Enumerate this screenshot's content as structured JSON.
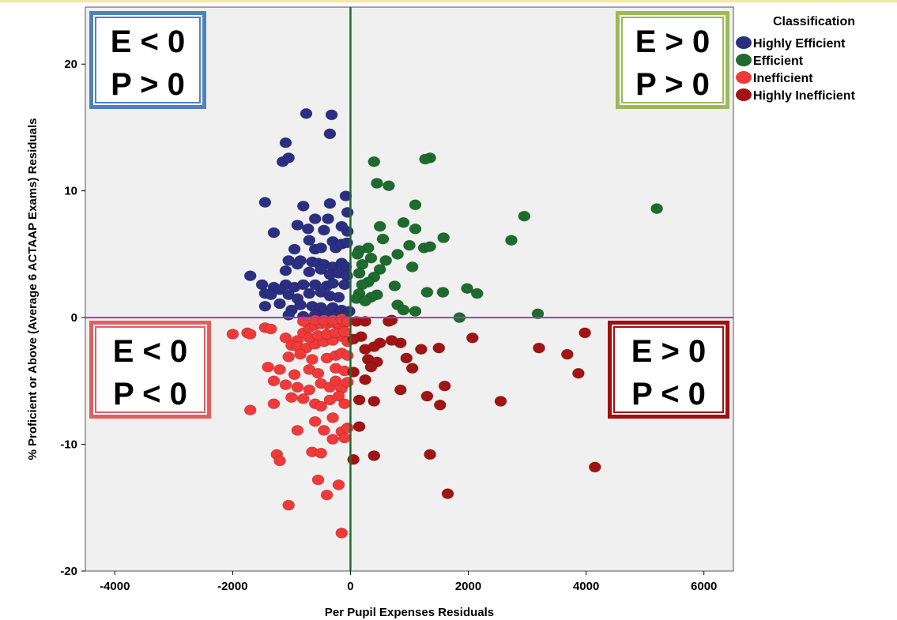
{
  "chart_data": {
    "type": "scatter",
    "title": "",
    "xlabel": "Per Pupil Expenses Residuals",
    "ylabel": "% Proficient or Above (Average 6 ACTAAP Exams) Residuals",
    "xlim": [
      -4500,
      6500
    ],
    "ylim": [
      -20,
      24.5
    ],
    "x_ticks": [
      -4000,
      -2000,
      0,
      2000,
      4000,
      6000
    ],
    "y_ticks": [
      -20,
      -10,
      0,
      10,
      20
    ],
    "grid": false,
    "reference_lines": [
      {
        "axis": "x",
        "value": 0,
        "color": "#1f6b2e"
      },
      {
        "axis": "y",
        "value": 0,
        "color": "#8a4aa8"
      }
    ],
    "quadrant_labels": [
      {
        "position": "top-left",
        "line1": "E < 0",
        "line2": "P > 0",
        "border_color": "#4f81bd"
      },
      {
        "position": "top-right",
        "line1": "E > 0",
        "line2": "P > 0",
        "border_color": "#9bbb59"
      },
      {
        "position": "bottom-left",
        "line1": "E < 0",
        "line2": "P < 0",
        "border_color": "#e06060"
      },
      {
        "position": "bottom-right",
        "line1": "E > 0",
        "line2": "P < 0",
        "border_color": "#a01010"
      }
    ],
    "legend": {
      "title": "Classification",
      "placement": "top-right"
    },
    "series": [
      {
        "name": "Highly Efficient",
        "color": "#2b2f82",
        "points": [
          [
            -750,
            16.1
          ],
          [
            -320,
            16.0
          ],
          [
            -350,
            14.5
          ],
          [
            -1100,
            13.8
          ],
          [
            -1150,
            12.3
          ],
          [
            -1050,
            12.6
          ],
          [
            -80,
            9.6
          ],
          [
            -1450,
            9.1
          ],
          [
            -800,
            8.8
          ],
          [
            -350,
            9.0
          ],
          [
            -50,
            8.3
          ],
          [
            -600,
            7.8
          ],
          [
            -380,
            7.8
          ],
          [
            -1300,
            6.7
          ],
          [
            -900,
            7.3
          ],
          [
            -720,
            7.0
          ],
          [
            -450,
            6.9
          ],
          [
            -150,
            7.2
          ],
          [
            -50,
            6.8
          ],
          [
            -700,
            6.1
          ],
          [
            -300,
            6.0
          ],
          [
            -950,
            5.4
          ],
          [
            -600,
            5.4
          ],
          [
            -500,
            5.5
          ],
          [
            -250,
            5.5
          ],
          [
            -150,
            5.8
          ],
          [
            -60,
            5.9
          ],
          [
            -1050,
            4.5
          ],
          [
            -850,
            4.5
          ],
          [
            -650,
            4.4
          ],
          [
            -550,
            4.3
          ],
          [
            -450,
            4.2
          ],
          [
            -300,
            4.0
          ],
          [
            -150,
            4.3
          ],
          [
            -80,
            4.0
          ],
          [
            -1700,
            3.3
          ],
          [
            -1100,
            3.7
          ],
          [
            -900,
            4.2
          ],
          [
            -700,
            3.6
          ],
          [
            -500,
            3.8
          ],
          [
            -350,
            3.4
          ],
          [
            -200,
            3.5
          ],
          [
            -60,
            3.3
          ],
          [
            -1500,
            2.6
          ],
          [
            -1300,
            2.4
          ],
          [
            -1100,
            2.6
          ],
          [
            -950,
            2.4
          ],
          [
            -800,
            2.6
          ],
          [
            -600,
            2.6
          ],
          [
            -400,
            2.5
          ],
          [
            -300,
            2.7
          ],
          [
            -100,
            2.6
          ],
          [
            -1450,
            1.9
          ],
          [
            -1350,
            1.8
          ],
          [
            -1200,
            2.2
          ],
          [
            -1050,
            1.8
          ],
          [
            -900,
            1.5
          ],
          [
            -700,
            1.9
          ],
          [
            -500,
            2.0
          ],
          [
            -350,
            1.7
          ],
          [
            -200,
            1.6
          ],
          [
            -1450,
            0.9
          ],
          [
            -1200,
            1.1
          ],
          [
            -1000,
            0.6
          ],
          [
            -850,
            1.0
          ],
          [
            -650,
            0.9
          ],
          [
            -500,
            0.8
          ],
          [
            -450,
            0.5
          ],
          [
            -300,
            0.8
          ],
          [
            -150,
            0.6
          ],
          [
            -20,
            0.5
          ],
          [
            -1050,
            0.2
          ],
          [
            -800,
            0.1
          ],
          [
            -600,
            0.2
          ],
          [
            -400,
            0.2
          ],
          [
            -250,
            0.1
          ],
          [
            -100,
            0.1
          ]
        ]
      },
      {
        "name": "Efficient",
        "color": "#1e6b2e",
        "points": [
          [
            1350,
            12.6
          ],
          [
            1270,
            12.5
          ],
          [
            400,
            12.3
          ],
          [
            450,
            10.6
          ],
          [
            650,
            10.4
          ],
          [
            5200,
            8.6
          ],
          [
            2950,
            8.0
          ],
          [
            1100,
            8.9
          ],
          [
            900,
            7.5
          ],
          [
            2730,
            6.1
          ],
          [
            500,
            7.2
          ],
          [
            1100,
            7.0
          ],
          [
            1580,
            6.3
          ],
          [
            550,
            6.2
          ],
          [
            1000,
            5.7
          ],
          [
            1250,
            5.5
          ],
          [
            1350,
            5.6
          ],
          [
            300,
            5.5
          ],
          [
            150,
            5.3
          ],
          [
            800,
            5.0
          ],
          [
            120,
            5.0
          ],
          [
            350,
            4.7
          ],
          [
            600,
            4.5
          ],
          [
            200,
            4.2
          ],
          [
            1050,
            4.0
          ],
          [
            500,
            3.8
          ],
          [
            150,
            3.5
          ],
          [
            400,
            3.2
          ],
          [
            300,
            2.8
          ],
          [
            200,
            2.6
          ],
          [
            750,
            2.5
          ],
          [
            1980,
            2.3
          ],
          [
            1300,
            2.0
          ],
          [
            1570,
            2.0
          ],
          [
            2150,
            1.9
          ],
          [
            150,
            1.9
          ],
          [
            450,
            1.8
          ],
          [
            350,
            1.6
          ],
          [
            100,
            1.5
          ],
          [
            250,
            1.3
          ],
          [
            800,
            1.0
          ],
          [
            900,
            0.6
          ],
          [
            1100,
            0.5
          ],
          [
            3180,
            0.3
          ],
          [
            1850,
            0.0
          ]
        ]
      },
      {
        "name": "Inefficient",
        "color": "#f03a3a",
        "points": [
          [
            -2000,
            -1.3
          ],
          [
            -1750,
            -1.2
          ],
          [
            -1700,
            -1.3
          ],
          [
            -1450,
            -0.8
          ],
          [
            -1350,
            -0.9
          ],
          [
            -1100,
            -1.6
          ],
          [
            -900,
            -1.8
          ],
          [
            -800,
            -1.2
          ],
          [
            -700,
            -0.8
          ],
          [
            -600,
            -0.6
          ],
          [
            -500,
            -0.5
          ],
          [
            -400,
            -0.5
          ],
          [
            -300,
            -0.4
          ],
          [
            -200,
            -0.5
          ],
          [
            -100,
            -0.4
          ],
          [
            -800,
            -0.3
          ],
          [
            -600,
            -0.2
          ],
          [
            -450,
            -0.2
          ],
          [
            -300,
            -0.2
          ],
          [
            -150,
            -0.1
          ],
          [
            -50,
            -0.3
          ],
          [
            -1000,
            -2.2
          ],
          [
            -900,
            -2.3
          ],
          [
            -750,
            -2.4
          ],
          [
            -600,
            -2.1
          ],
          [
            -450,
            -1.9
          ],
          [
            -300,
            -1.8
          ],
          [
            -150,
            -1.5
          ],
          [
            -50,
            -1.9
          ],
          [
            -700,
            -1.6
          ],
          [
            -550,
            -1.4
          ],
          [
            -400,
            -1.3
          ],
          [
            -250,
            -1.2
          ],
          [
            -100,
            -1.1
          ],
          [
            -1050,
            -3.1
          ],
          [
            -850,
            -2.9
          ],
          [
            -650,
            -3.3
          ],
          [
            -400,
            -3.2
          ],
          [
            -250,
            -3.0
          ],
          [
            -150,
            -2.8
          ],
          [
            -50,
            -3.0
          ],
          [
            -1400,
            -3.9
          ],
          [
            -1200,
            -4.1
          ],
          [
            -950,
            -4.5
          ],
          [
            -700,
            -4.1
          ],
          [
            -550,
            -4.4
          ],
          [
            -250,
            -4.0
          ],
          [
            -100,
            -4.2
          ],
          [
            -1300,
            -5.0
          ],
          [
            -1100,
            -5.3
          ],
          [
            -900,
            -5.5
          ],
          [
            -700,
            -5.7
          ],
          [
            -500,
            -5.2
          ],
          [
            -350,
            -5.5
          ],
          [
            -250,
            -5.0
          ],
          [
            -150,
            -5.6
          ],
          [
            -50,
            -5.1
          ],
          [
            -1700,
            -7.3
          ],
          [
            -1300,
            -6.8
          ],
          [
            -1000,
            -6.3
          ],
          [
            -800,
            -6.4
          ],
          [
            -600,
            -6.8
          ],
          [
            -500,
            -7.0
          ],
          [
            -350,
            -6.5
          ],
          [
            -200,
            -6.2
          ],
          [
            -100,
            -6.8
          ],
          [
            -900,
            -8.9
          ],
          [
            -600,
            -8.2
          ],
          [
            -450,
            -8.9
          ],
          [
            -300,
            -7.9
          ],
          [
            -150,
            -9.0
          ],
          [
            -50,
            -8.7
          ],
          [
            -1250,
            -10.8
          ],
          [
            -1200,
            -11.3
          ],
          [
            -650,
            -10.6
          ],
          [
            -500,
            -10.7
          ],
          [
            -300,
            -9.6
          ],
          [
            -100,
            -9.5
          ],
          [
            -550,
            -12.8
          ],
          [
            -200,
            -13.2
          ],
          [
            -400,
            -14.0
          ],
          [
            -1050,
            -14.8
          ],
          [
            -150,
            -17.0
          ]
        ]
      },
      {
        "name": "Highly Inefficient",
        "color": "#a01414",
        "points": [
          [
            100,
            -0.3
          ],
          [
            250,
            -0.3
          ],
          [
            700,
            -0.2
          ],
          [
            650,
            -0.3
          ],
          [
            180,
            -1.5
          ],
          [
            3980,
            -1.2
          ],
          [
            2070,
            -1.6
          ],
          [
            50,
            -1.7
          ],
          [
            500,
            -2.0
          ],
          [
            850,
            -2.0
          ],
          [
            700,
            -1.8
          ],
          [
            1500,
            -2.4
          ],
          [
            3200,
            -2.4
          ],
          [
            1200,
            -2.5
          ],
          [
            250,
            -2.5
          ],
          [
            400,
            -2.3
          ],
          [
            3680,
            -2.9
          ],
          [
            300,
            -3.3
          ],
          [
            950,
            -3.2
          ],
          [
            450,
            -3.5
          ],
          [
            1050,
            -4.0
          ],
          [
            350,
            -3.9
          ],
          [
            3870,
            -4.4
          ],
          [
            50,
            -4.3
          ],
          [
            1600,
            -5.4
          ],
          [
            250,
            -4.9
          ],
          [
            850,
            -5.7
          ],
          [
            1300,
            -6.2
          ],
          [
            150,
            -6.5
          ],
          [
            2550,
            -6.6
          ],
          [
            1520,
            -6.9
          ],
          [
            400,
            -6.6
          ],
          [
            150,
            -8.6
          ],
          [
            1350,
            -10.8
          ],
          [
            400,
            -10.9
          ],
          [
            50,
            -11.2
          ],
          [
            4150,
            -11.8
          ],
          [
            1650,
            -13.9
          ]
        ]
      }
    ]
  }
}
